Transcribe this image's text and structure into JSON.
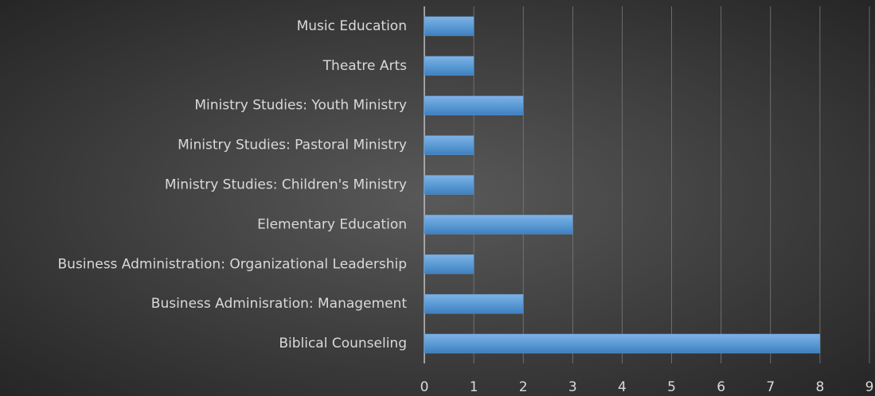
{
  "chart_data": {
    "type": "bar",
    "orientation": "horizontal",
    "categories": [
      "Music Education",
      "Theatre Arts",
      "Ministry Studies: Youth Ministry",
      "Ministry Studies: Pastoral Ministry",
      "Ministry Studies: Children's Ministry",
      "Elementary Education",
      "Business Administration: Organizational Leadership",
      "Business Adminisration: Management",
      "Biblical Counseling"
    ],
    "values": [
      1,
      1,
      2,
      1,
      1,
      3,
      1,
      2,
      8
    ],
    "color": "#5b9bd5",
    "xlim": [
      0,
      9
    ],
    "xticks": [
      0,
      1,
      2,
      3,
      4,
      5,
      6,
      7,
      8,
      9
    ],
    "grid": true
  }
}
